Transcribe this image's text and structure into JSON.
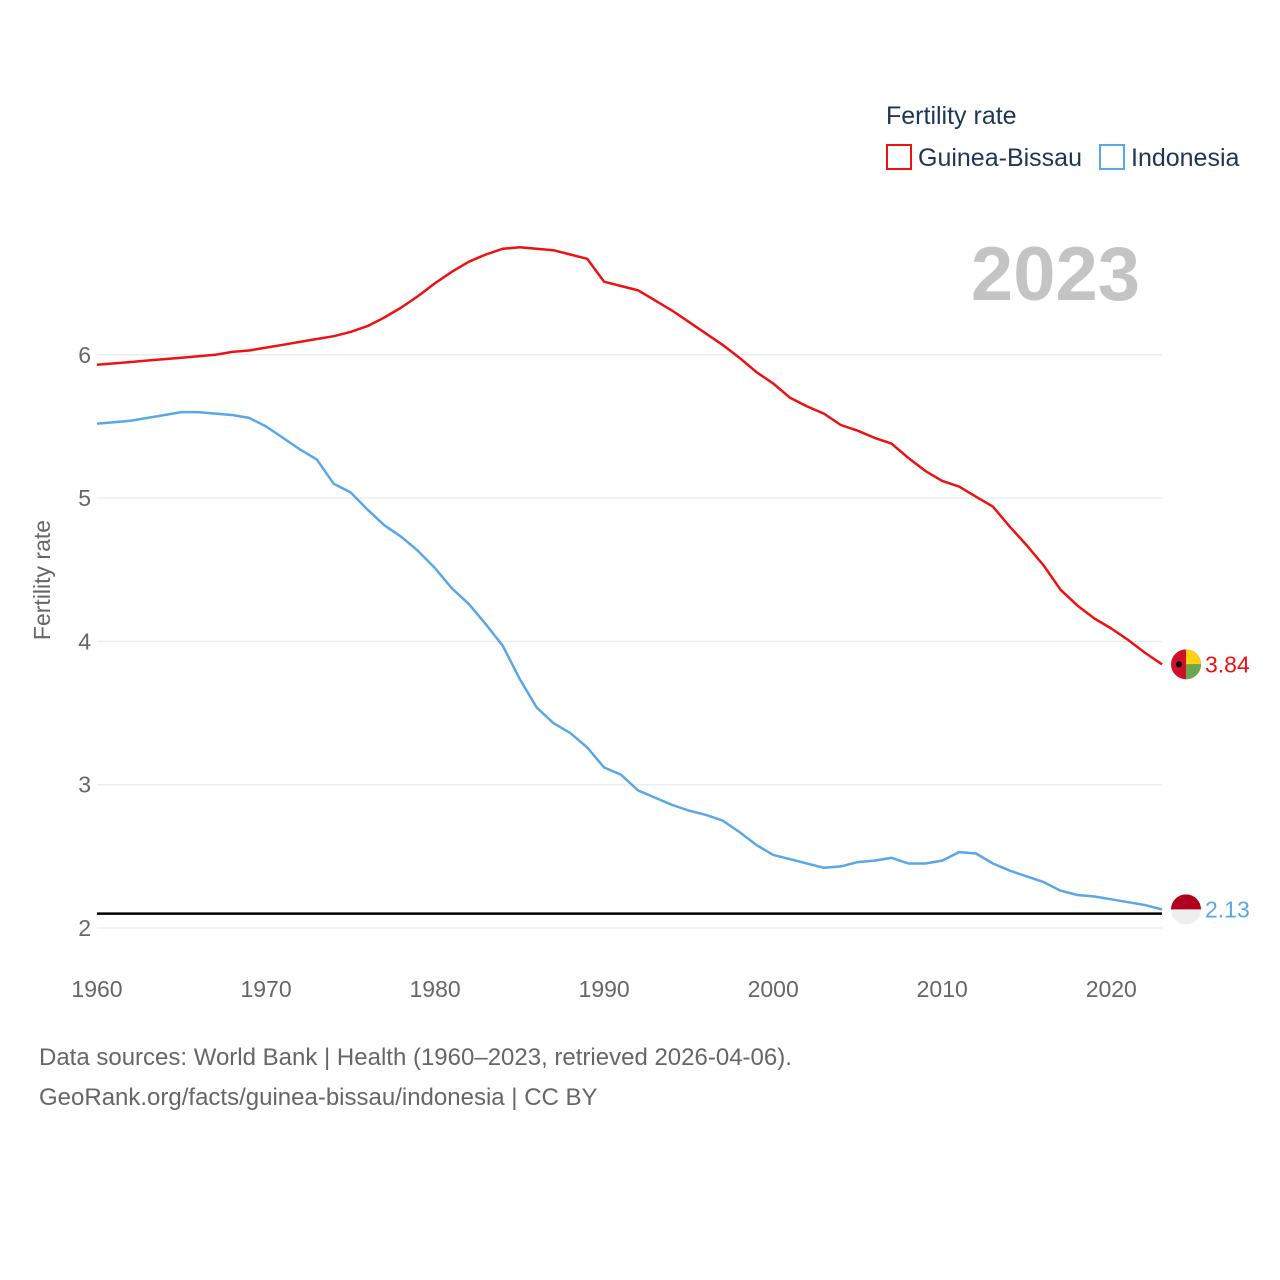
{
  "chart_data": {
    "type": "line",
    "title": "",
    "ylabel": "Fertility rate",
    "xlabel": "",
    "legend_title": "Fertility rate",
    "legend_position": "top-right",
    "year_label": "2023",
    "xlim": [
      1960,
      2023
    ],
    "ylim": [
      1.95,
      7.0
    ],
    "x_ticks": [
      1960,
      1970,
      1980,
      1990,
      2000,
      2010,
      2020
    ],
    "y_ticks": [
      2,
      3,
      4,
      5,
      6
    ],
    "reference_line": 2.1,
    "x": [
      1960,
      1961,
      1962,
      1963,
      1964,
      1965,
      1966,
      1967,
      1968,
      1969,
      1970,
      1971,
      1972,
      1973,
      1974,
      1975,
      1976,
      1977,
      1978,
      1979,
      1980,
      1981,
      1982,
      1983,
      1984,
      1985,
      1986,
      1987,
      1988,
      1989,
      1990,
      1991,
      1992,
      1993,
      1994,
      1995,
      1996,
      1997,
      1998,
      1999,
      2000,
      2001,
      2002,
      2003,
      2004,
      2005,
      2006,
      2007,
      2008,
      2009,
      2010,
      2011,
      2012,
      2013,
      2014,
      2015,
      2016,
      2017,
      2018,
      2019,
      2020,
      2021,
      2022,
      2023
    ],
    "series": [
      {
        "name": "Guinea-Bissau",
        "color": "#ee1111",
        "end_label": "3.84",
        "flag": "guinea-bissau-flag-icon",
        "values": [
          5.93,
          5.94,
          5.95,
          5.96,
          5.97,
          5.98,
          5.99,
          6.0,
          6.02,
          6.03,
          6.05,
          6.07,
          6.09,
          6.11,
          6.13,
          6.16,
          6.2,
          6.26,
          6.33,
          6.41,
          6.5,
          6.58,
          6.65,
          6.7,
          6.74,
          6.75,
          6.74,
          6.73,
          6.7,
          6.67,
          6.51,
          6.48,
          6.45,
          6.38,
          6.31,
          6.23,
          6.15,
          6.07,
          5.98,
          5.88,
          5.8,
          5.7,
          5.64,
          5.59,
          5.51,
          5.47,
          5.42,
          5.38,
          5.28,
          5.19,
          5.12,
          5.08,
          5.01,
          4.94,
          4.8,
          4.67,
          4.53,
          4.36,
          4.25,
          4.16,
          4.09,
          4.01,
          3.92,
          3.84
        ]
      },
      {
        "name": "Indonesia",
        "color": "#5aa7e8",
        "end_label": "2.13",
        "flag": "indonesia-flag-icon",
        "values": [
          5.52,
          5.53,
          5.54,
          5.56,
          5.58,
          5.6,
          5.6,
          5.59,
          5.58,
          5.56,
          5.5,
          5.42,
          5.34,
          5.27,
          5.1,
          5.04,
          4.92,
          4.81,
          4.73,
          4.63,
          4.51,
          4.37,
          4.26,
          4.12,
          3.97,
          3.74,
          3.54,
          3.43,
          3.36,
          3.26,
          3.12,
          3.07,
          2.96,
          2.91,
          2.86,
          2.82,
          2.79,
          2.75,
          2.67,
          2.58,
          2.51,
          2.48,
          2.45,
          2.42,
          2.43,
          2.46,
          2.47,
          2.49,
          2.45,
          2.45,
          2.47,
          2.53,
          2.52,
          2.45,
          2.4,
          2.36,
          2.32,
          2.26,
          2.23,
          2.22,
          2.2,
          2.18,
          2.16,
          2.13
        ]
      }
    ]
  },
  "footer": {
    "line1": "Data sources: World Bank | Health (1960–2023, retrieved 2026-04-06).",
    "line2": "GeoRank.org/facts/guinea-bissau/indonesia | CC BY"
  }
}
